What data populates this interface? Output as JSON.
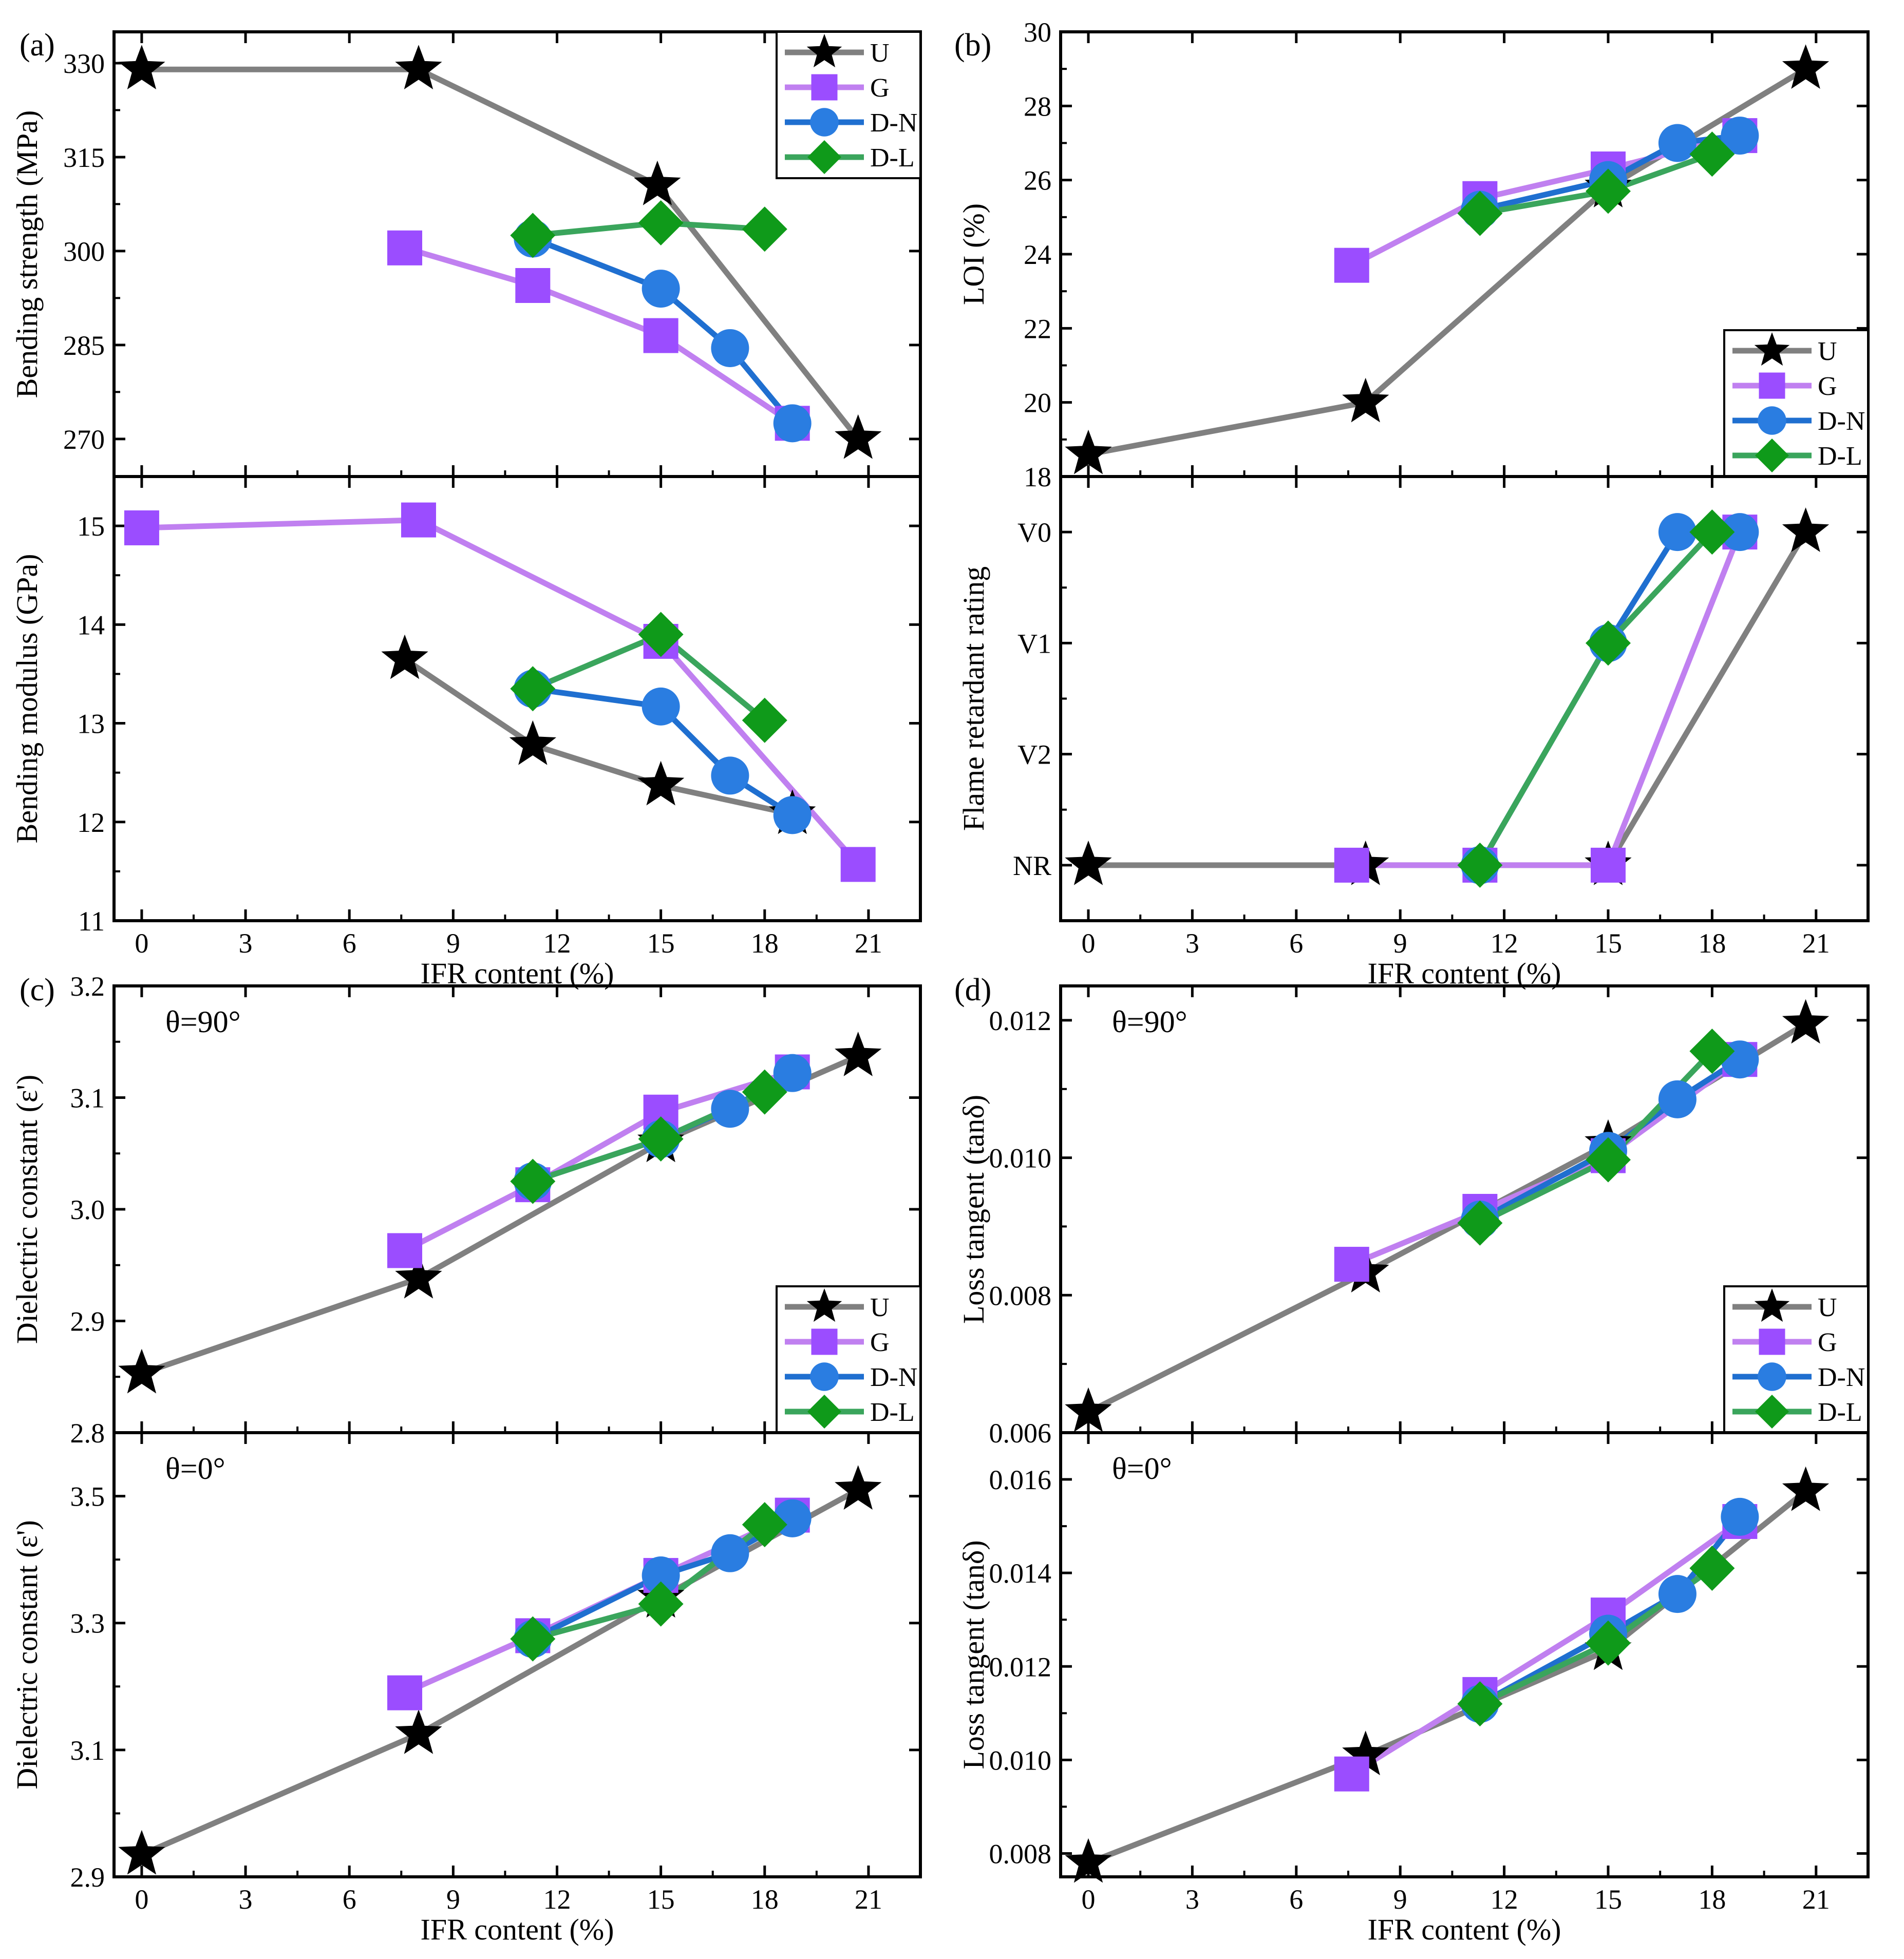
{
  "figure": {
    "panel_labels": [
      "(a)",
      "(b)",
      "(c)",
      "(d)"
    ],
    "series_styles": [
      {
        "name": "U",
        "color": "#808080",
        "marker": "star",
        "marker_color": "#000000"
      },
      {
        "name": "G",
        "color": "#c080f0",
        "marker": "square",
        "marker_color": "#9b4dff"
      },
      {
        "name": "D-N",
        "color": "#1f6fd0",
        "marker": "circle",
        "marker_color": "#2a7de1"
      },
      {
        "name": "D-L",
        "color": "#3aa55c",
        "marker": "diamond",
        "marker_color": "#0f9a1a"
      }
    ]
  },
  "chart_data": [
    {
      "id": "a_top",
      "panel": "(a)",
      "type": "line",
      "xlabel": "",
      "ylabel": "Bending strength (MPa)",
      "xlim": [
        -0.8,
        22.5
      ],
      "ylim": [
        264,
        335
      ],
      "xticks": [
        0,
        3,
        6,
        9,
        12,
        15,
        18,
        21
      ],
      "yticks": [
        270,
        285,
        300,
        315,
        330
      ],
      "yticklabels": [
        "270",
        "285",
        "300",
        "315",
        "330"
      ],
      "legend": "top-right",
      "series": [
        {
          "name": "U",
          "x": [
            0,
            8,
            14.9,
            20.7
          ],
          "y": [
            329,
            329,
            310.5,
            270
          ]
        },
        {
          "name": "G",
          "x": [
            7.6,
            11.3,
            15.0,
            18.8
          ],
          "y": [
            300.5,
            294.5,
            286.5,
            272.5
          ]
        },
        {
          "name": "D-N",
          "x": [
            11.3,
            15.0,
            17.0,
            18.8
          ],
          "y": [
            302,
            294,
            284.5,
            272.5
          ]
        },
        {
          "name": "D-L",
          "x": [
            11.3,
            15.0,
            18.0
          ],
          "y": [
            302.5,
            304.5,
            303.5
          ]
        }
      ]
    },
    {
      "id": "a_bottom",
      "panel": "(a)",
      "type": "line",
      "xlabel": "IFR content (%)",
      "ylabel": "Bending modulus (GPa)",
      "xlim": [
        -0.8,
        22.5
      ],
      "ylim": [
        11,
        15.5
      ],
      "xticks": [
        0,
        3,
        6,
        9,
        12,
        15,
        18,
        21
      ],
      "yticks": [
        11,
        12,
        13,
        14,
        15
      ],
      "yticklabels": [
        "11",
        "12",
        "13",
        "14",
        "15"
      ],
      "series": [
        {
          "name": "U",
          "x": [
            7.6,
            11.3,
            15.0,
            18.8
          ],
          "y": [
            13.65,
            12.78,
            12.37,
            12.08
          ]
        },
        {
          "name": "G",
          "x": [
            0,
            8,
            15.0,
            20.7
          ],
          "y": [
            14.98,
            15.06,
            13.83,
            11.57
          ]
        },
        {
          "name": "D-N",
          "x": [
            11.3,
            15.0,
            17.0,
            18.8
          ],
          "y": [
            13.35,
            13.17,
            12.47,
            12.07
          ]
        },
        {
          "name": "D-L",
          "x": [
            11.3,
            15.0,
            18.0
          ],
          "y": [
            13.35,
            13.9,
            13.03
          ]
        }
      ]
    },
    {
      "id": "b_top",
      "panel": "(b)",
      "type": "line",
      "xlabel": "",
      "ylabel": "LOI (%)",
      "xlim": [
        -0.8,
        22.5
      ],
      "ylim": [
        18,
        30
      ],
      "xticks": [
        0,
        3,
        6,
        9,
        12,
        15,
        18,
        21
      ],
      "yticks": [
        18,
        20,
        22,
        24,
        26,
        28,
        30
      ],
      "yticklabels": [
        "18",
        "20",
        "22",
        "24",
        "26",
        "28",
        "30"
      ],
      "legend": "bottom-right",
      "series": [
        {
          "name": "U",
          "x": [
            0,
            8,
            15.0,
            20.7
          ],
          "y": [
            18.6,
            20.0,
            25.8,
            29.0
          ]
        },
        {
          "name": "G",
          "x": [
            7.6,
            11.3,
            15.0,
            18.8
          ],
          "y": [
            23.7,
            25.5,
            26.3,
            27.2
          ]
        },
        {
          "name": "D-N",
          "x": [
            11.3,
            15.0,
            17.0,
            18.8
          ],
          "y": [
            25.2,
            26.0,
            27.0,
            27.2
          ]
        },
        {
          "name": "D-L",
          "x": [
            11.3,
            15.0,
            18.0
          ],
          "y": [
            25.1,
            25.7,
            26.7
          ]
        }
      ]
    },
    {
      "id": "b_bottom",
      "panel": "(b)",
      "type": "line",
      "xlabel": "IFR content (%)",
      "ylabel": "Flame retardant rating",
      "xlim": [
        -0.8,
        22.5
      ],
      "ylim": [
        -0.5,
        3.5
      ],
      "xticks": [
        0,
        3,
        6,
        9,
        12,
        15,
        18,
        21
      ],
      "yticks": [
        0,
        1,
        2,
        3
      ],
      "yticklabels": [
        "NR",
        "V2",
        "V1",
        "V0"
      ],
      "series": [
        {
          "name": "U",
          "x": [
            0,
            8,
            15.0,
            20.7
          ],
          "y": [
            0,
            0,
            0,
            3
          ]
        },
        {
          "name": "G",
          "x": [
            7.6,
            11.3,
            15.0,
            18.8
          ],
          "y": [
            0,
            0,
            0,
            3
          ]
        },
        {
          "name": "D-N",
          "x": [
            11.3,
            15.0,
            17.0,
            18.8
          ],
          "y": [
            0,
            2,
            3,
            3
          ]
        },
        {
          "name": "D-L",
          "x": [
            11.3,
            15.0,
            18.0
          ],
          "y": [
            0,
            2,
            3
          ]
        }
      ]
    },
    {
      "id": "c_top",
      "panel": "(c)",
      "type": "line",
      "xlabel": "",
      "ylabel": "Dielectric constant (ε')",
      "annotation": "θ=90°",
      "xlim": [
        -0.8,
        22.5
      ],
      "ylim": [
        2.8,
        3.2
      ],
      "xticks": [
        0,
        3,
        6,
        9,
        12,
        15,
        18,
        21
      ],
      "yticks": [
        2.8,
        2.9,
        3.0,
        3.1,
        3.2
      ],
      "yticklabels": [
        "2.8",
        "2.9",
        "3.0",
        "3.1",
        "3.2"
      ],
      "legend": "bottom-right",
      "series": [
        {
          "name": "U",
          "x": [
            0,
            8,
            15.0,
            20.7
          ],
          "y": [
            2.853,
            2.938,
            3.06,
            3.137
          ]
        },
        {
          "name": "G",
          "x": [
            7.6,
            11.3,
            15.0,
            18.8
          ],
          "y": [
            2.963,
            3.022,
            3.087,
            3.123
          ]
        },
        {
          "name": "D-N",
          "x": [
            11.3,
            15.0,
            17.0,
            18.8
          ],
          "y": [
            3.025,
            3.063,
            3.09,
            3.122
          ]
        },
        {
          "name": "D-L",
          "x": [
            11.3,
            15.0,
            18.0
          ],
          "y": [
            3.025,
            3.063,
            3.105
          ]
        }
      ]
    },
    {
      "id": "c_bottom",
      "panel": "(c)",
      "type": "line",
      "xlabel": "IFR content (%)",
      "ylabel": "Dielectric constant (ε')",
      "annotation": "θ=0°",
      "xlim": [
        -0.8,
        22.5
      ],
      "ylim": [
        2.9,
        3.6
      ],
      "xticks": [
        0,
        3,
        6,
        9,
        12,
        15,
        18,
        21
      ],
      "yticks": [
        2.9,
        3.1,
        3.3,
        3.5
      ],
      "yticklabels": [
        "2.9",
        "3.1",
        "3.3",
        "3.5"
      ],
      "series": [
        {
          "name": "U",
          "x": [
            0,
            8,
            15.0,
            20.7
          ],
          "y": [
            2.935,
            3.125,
            3.34,
            3.51
          ]
        },
        {
          "name": "G",
          "x": [
            7.6,
            11.3,
            15.0,
            18.8
          ],
          "y": [
            3.19,
            3.28,
            3.375,
            3.47
          ]
        },
        {
          "name": "D-N",
          "x": [
            11.3,
            15.0,
            17.0,
            18.8
          ],
          "y": [
            3.275,
            3.375,
            3.41,
            3.465
          ]
        },
        {
          "name": "D-L",
          "x": [
            11.3,
            15.0,
            18.0
          ],
          "y": [
            3.275,
            3.33,
            3.455
          ]
        }
      ]
    },
    {
      "id": "d_top",
      "panel": "(d)",
      "type": "line",
      "xlabel": "",
      "ylabel": "Loss tangent (tanδ)",
      "annotation": "θ=90°",
      "xlim": [
        -0.8,
        22.5
      ],
      "ylim": [
        0.006,
        0.0125
      ],
      "xticks": [
        0,
        3,
        6,
        9,
        12,
        15,
        18,
        21
      ],
      "yticks": [
        0.006,
        0.008,
        0.01,
        0.012
      ],
      "yticklabels": [
        "0.006",
        "0.008",
        "0.010",
        "0.012"
      ],
      "legend": "bottom-right",
      "series": [
        {
          "name": "U",
          "x": [
            0,
            8,
            15.0,
            20.7
          ],
          "y": [
            0.0063,
            0.00833,
            0.0102,
            0.01195
          ]
        },
        {
          "name": "G",
          "x": [
            7.6,
            11.3,
            15.0,
            18.8
          ],
          "y": [
            0.00845,
            0.00922,
            0.01003,
            0.01143
          ]
        },
        {
          "name": "D-N",
          "x": [
            11.3,
            15.0,
            17.0,
            18.8
          ],
          "y": [
            0.0091,
            0.0101,
            0.01085,
            0.01143
          ]
        },
        {
          "name": "D-L",
          "x": [
            11.3,
            15.0,
            18.0
          ],
          "y": [
            0.00905,
            0.00997,
            0.01155
          ]
        }
      ]
    },
    {
      "id": "d_bottom",
      "panel": "(d)",
      "type": "line",
      "xlabel": "IFR content (%)",
      "ylabel": "Loss tangent (tanδ)",
      "annotation": "θ=0°",
      "xlim": [
        -0.8,
        22.5
      ],
      "ylim": [
        0.0075,
        0.017
      ],
      "xticks": [
        0,
        3,
        6,
        9,
        12,
        15,
        18,
        21
      ],
      "yticks": [
        0.008,
        0.01,
        0.012,
        0.014,
        0.016
      ],
      "yticklabels": [
        "0.008",
        "0.010",
        "0.012",
        "0.014",
        "0.016"
      ],
      "series": [
        {
          "name": "U",
          "x": [
            0,
            8,
            15.0,
            20.7
          ],
          "y": [
            0.0078,
            0.0101,
            0.01235,
            0.01575
          ]
        },
        {
          "name": "G",
          "x": [
            7.6,
            11.3,
            15.0,
            18.8
          ],
          "y": [
            0.0097,
            0.0114,
            0.0131,
            0.0151
          ]
        },
        {
          "name": "D-N",
          "x": [
            11.3,
            15.0,
            17.0,
            18.8
          ],
          "y": [
            0.0112,
            0.0127,
            0.01355,
            0.0152
          ]
        },
        {
          "name": "D-L",
          "x": [
            11.3,
            15.0,
            18.0
          ],
          "y": [
            0.0112,
            0.0125,
            0.0141
          ]
        }
      ]
    }
  ]
}
